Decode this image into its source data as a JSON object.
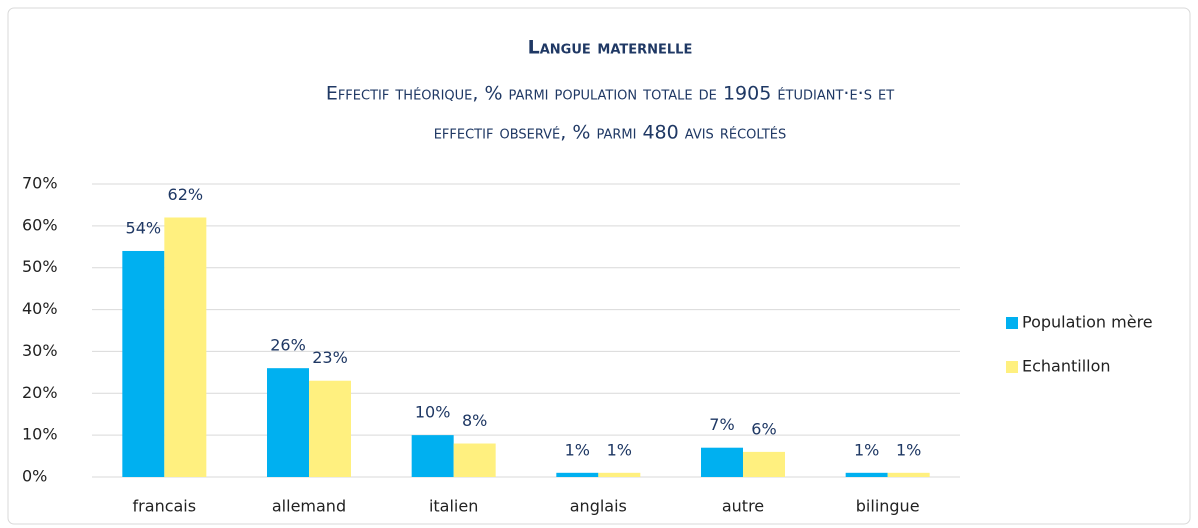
{
  "chart_data": {
    "type": "bar",
    "title": "Langue maternelle",
    "subtitle": [
      "Effectif théorique, % parmi population totale de 1905 étudiant·e·s et",
      "effectif observé, % parmi 480 avis récoltés"
    ],
    "categories": [
      "francais",
      "allemand",
      "italien",
      "anglais",
      "autre",
      "bilingue"
    ],
    "series": [
      {
        "name": "Population mère",
        "color": "#00b0f0",
        "values": [
          54,
          26,
          10,
          1,
          7,
          1
        ],
        "value_labels": [
          "54%",
          "26%",
          "10%",
          "1%",
          "7%",
          "1%"
        ]
      },
      {
        "name": "Echantillon",
        "color": "#fff07f",
        "values": [
          62,
          23,
          8,
          1,
          6,
          1
        ],
        "value_labels": [
          "62%",
          "23%",
          "8%",
          "1%",
          "6%",
          "1%"
        ]
      }
    ],
    "ylim": [
      0,
      70
    ],
    "yticks": [
      {
        "value": 0,
        "label": "0%"
      },
      {
        "value": 10,
        "label": "10%"
      },
      {
        "value": 20,
        "label": "20%"
      },
      {
        "value": 30,
        "label": "30%"
      },
      {
        "value": 40,
        "label": "40%"
      },
      {
        "value": 50,
        "label": "50%"
      },
      {
        "value": 60,
        "label": "60%"
      },
      {
        "value": 70,
        "label": "70%"
      }
    ],
    "grid": true,
    "legend": "right"
  }
}
